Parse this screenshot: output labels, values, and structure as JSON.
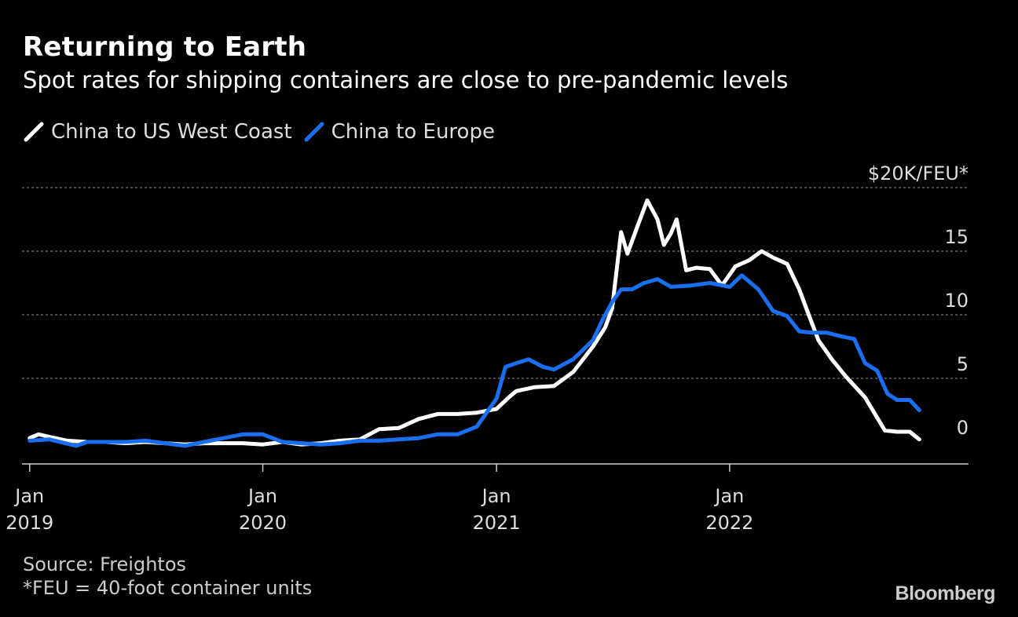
{
  "title": "Returning to Earth",
  "subtitle": "Spot rates for shipping containers are close to pre-pandemic levels",
  "source": "Source: Freightos",
  "footnote": "*FEU = 40-foot container units",
  "brand": "Bloomberg",
  "colors": {
    "background": "#000000",
    "us_west_coast": "#ffffff",
    "europe": "#1a6ff0",
    "grid": "#777777"
  },
  "chart_data": {
    "type": "line",
    "ylabel": "$20K/FEU*",
    "ylim": [
      0,
      20
    ],
    "yticks": [
      0,
      5,
      10,
      15,
      20
    ],
    "ytick_labels": [
      "0",
      "5",
      "10",
      "15",
      "$20K/FEU*"
    ],
    "xlim": [
      "2018-12-20",
      "2023-01-10"
    ],
    "xticks": [
      {
        "date": "2019-01-01",
        "line1": "Jan",
        "line2": "2019"
      },
      {
        "date": "2020-01-01",
        "line1": "Jan",
        "line2": "2020"
      },
      {
        "date": "2021-01-01",
        "line1": "Jan",
        "line2": "2021"
      },
      {
        "date": "2022-01-01",
        "line1": "Jan",
        "line2": "2022"
      }
    ],
    "grid": true,
    "legend_position": "top-left",
    "series": [
      {
        "name": "China to US West Coast",
        "color": "#ffffff",
        "points": [
          [
            "2019-01-01",
            0.3
          ],
          [
            "2019-01-15",
            0.6
          ],
          [
            "2019-02-01",
            0.4
          ],
          [
            "2019-03-01",
            0.1
          ],
          [
            "2019-04-01",
            0.0
          ],
          [
            "2019-05-01",
            0.0
          ],
          [
            "2019-06-01",
            -0.1
          ],
          [
            "2019-07-01",
            0.0
          ],
          [
            "2019-08-01",
            -0.1
          ],
          [
            "2019-09-01",
            -0.2
          ],
          [
            "2019-10-01",
            -0.1
          ],
          [
            "2019-11-01",
            -0.1
          ],
          [
            "2019-12-01",
            -0.1
          ],
          [
            "2020-01-01",
            -0.2
          ],
          [
            "2020-02-01",
            0.0
          ],
          [
            "2020-03-01",
            -0.2
          ],
          [
            "2020-04-01",
            -0.1
          ],
          [
            "2020-05-01",
            0.1
          ],
          [
            "2020-06-01",
            0.2
          ],
          [
            "2020-07-01",
            1.0
          ],
          [
            "2020-08-01",
            1.1
          ],
          [
            "2020-09-01",
            1.8
          ],
          [
            "2020-10-01",
            2.2
          ],
          [
            "2020-11-01",
            2.2
          ],
          [
            "2020-12-01",
            2.3
          ],
          [
            "2021-01-01",
            2.6
          ],
          [
            "2021-01-20",
            3.5
          ],
          [
            "2021-02-01",
            4.0
          ],
          [
            "2021-03-01",
            4.3
          ],
          [
            "2021-04-01",
            4.4
          ],
          [
            "2021-05-01",
            5.5
          ],
          [
            "2021-06-01",
            7.5
          ],
          [
            "2021-06-20",
            9.0
          ],
          [
            "2021-07-01",
            10.5
          ],
          [
            "2021-07-15",
            16.5
          ],
          [
            "2021-07-25",
            14.8
          ],
          [
            "2021-08-10",
            17.0
          ],
          [
            "2021-08-25",
            19.0
          ],
          [
            "2021-09-10",
            17.5
          ],
          [
            "2021-09-20",
            15.5
          ],
          [
            "2021-10-01",
            16.4
          ],
          [
            "2021-10-10",
            17.5
          ],
          [
            "2021-10-25",
            13.5
          ],
          [
            "2021-11-10",
            13.7
          ],
          [
            "2021-12-01",
            13.6
          ],
          [
            "2021-12-20",
            12.3
          ],
          [
            "2022-01-10",
            13.8
          ],
          [
            "2022-02-01",
            14.3
          ],
          [
            "2022-02-20",
            15.0
          ],
          [
            "2022-03-10",
            14.5
          ],
          [
            "2022-04-01",
            14.0
          ],
          [
            "2022-04-20",
            12.0
          ],
          [
            "2022-05-01",
            10.5
          ],
          [
            "2022-05-20",
            8.0
          ],
          [
            "2022-06-10",
            6.5
          ],
          [
            "2022-07-01",
            5.2
          ],
          [
            "2022-08-01",
            3.5
          ],
          [
            "2022-09-01",
            0.9
          ],
          [
            "2022-09-20",
            0.8
          ],
          [
            "2022-10-10",
            0.8
          ],
          [
            "2022-10-25",
            0.2
          ]
        ]
      },
      {
        "name": "China to Europe",
        "color": "#1a6ff0",
        "points": [
          [
            "2019-01-01",
            0.1
          ],
          [
            "2019-02-01",
            0.2
          ],
          [
            "2019-03-15",
            -0.3
          ],
          [
            "2019-04-01",
            0.0
          ],
          [
            "2019-05-01",
            0.0
          ],
          [
            "2019-06-01",
            0.0
          ],
          [
            "2019-07-01",
            0.1
          ],
          [
            "2019-08-01",
            -0.1
          ],
          [
            "2019-09-01",
            -0.3
          ],
          [
            "2019-10-01",
            0.0
          ],
          [
            "2019-11-01",
            0.3
          ],
          [
            "2019-12-01",
            0.6
          ],
          [
            "2020-01-01",
            0.6
          ],
          [
            "2020-02-01",
            0.0
          ],
          [
            "2020-03-01",
            -0.1
          ],
          [
            "2020-04-01",
            -0.2
          ],
          [
            "2020-05-01",
            -0.1
          ],
          [
            "2020-06-01",
            0.1
          ],
          [
            "2020-07-01",
            0.1
          ],
          [
            "2020-08-01",
            0.2
          ],
          [
            "2020-09-01",
            0.3
          ],
          [
            "2020-10-01",
            0.6
          ],
          [
            "2020-11-01",
            0.6
          ],
          [
            "2020-12-01",
            1.2
          ],
          [
            "2021-01-01",
            3.4
          ],
          [
            "2021-01-15",
            5.9
          ],
          [
            "2021-02-01",
            6.2
          ],
          [
            "2021-02-20",
            6.5
          ],
          [
            "2021-03-15",
            5.9
          ],
          [
            "2021-04-01",
            5.7
          ],
          [
            "2021-05-01",
            6.5
          ],
          [
            "2021-06-01",
            8.0
          ],
          [
            "2021-06-15",
            9.5
          ],
          [
            "2021-07-01",
            11.0
          ],
          [
            "2021-07-15",
            12.0
          ],
          [
            "2021-08-01",
            12.0
          ],
          [
            "2021-08-20",
            12.5
          ],
          [
            "2021-09-10",
            12.8
          ],
          [
            "2021-10-01",
            12.2
          ],
          [
            "2021-11-01",
            12.3
          ],
          [
            "2021-12-01",
            12.5
          ],
          [
            "2022-01-01",
            12.2
          ],
          [
            "2022-01-20",
            13.1
          ],
          [
            "2022-02-15",
            12.0
          ],
          [
            "2022-03-10",
            10.3
          ],
          [
            "2022-04-01",
            9.9
          ],
          [
            "2022-04-20",
            8.7
          ],
          [
            "2022-05-10",
            8.6
          ],
          [
            "2022-06-01",
            8.6
          ],
          [
            "2022-06-25",
            8.3
          ],
          [
            "2022-07-05",
            8.2
          ],
          [
            "2022-07-15",
            8.1
          ],
          [
            "2022-08-01",
            6.2
          ],
          [
            "2022-08-20",
            5.6
          ],
          [
            "2022-09-05",
            3.8
          ],
          [
            "2022-09-20",
            3.3
          ],
          [
            "2022-10-10",
            3.3
          ],
          [
            "2022-10-25",
            2.5
          ]
        ]
      }
    ]
  }
}
